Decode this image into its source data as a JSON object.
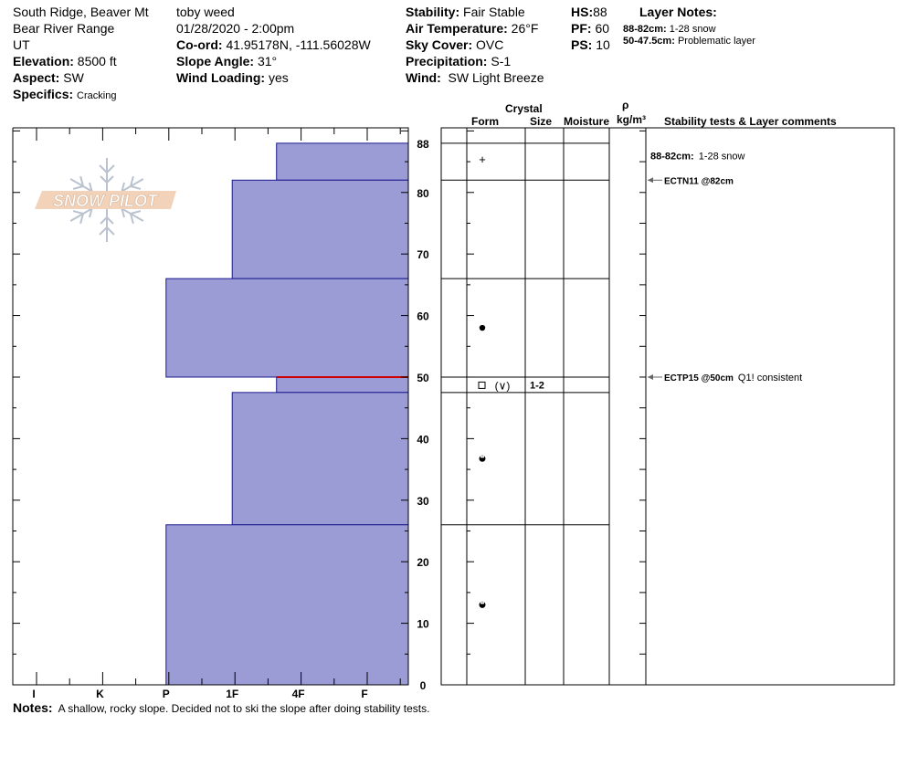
{
  "header": {
    "location": "South Ridge, Beaver Mt",
    "range": "Bear River Range",
    "state": "UT",
    "elevation_label": "Elevation:",
    "elevation": "8500 ft",
    "aspect_label": "Aspect:",
    "aspect": "SW",
    "specifics_label": "Specifics:",
    "specifics": "Cracking",
    "observer": "toby weed",
    "datetime": "01/28/2020 - 2:00pm",
    "coord_label": "Co-ord:",
    "coord": "41.95178N, -111.56028W",
    "slope_label": "Slope Angle:",
    "slope": "31°",
    "wind_loading_label": "Wind Loading:",
    "wind_loading": "yes",
    "stability_label": "Stability:",
    "stability": "Fair Stable",
    "air_temp_label": "Air Temperature:",
    "air_temp": "26°F",
    "sky_label": "Sky Cover:",
    "sky": "OVC",
    "precip_label": "Precipitation:",
    "precip": "S-1",
    "wind_label": "Wind:",
    "wind": "SW Light Breeze",
    "hs_label": "HS:",
    "hs": "88",
    "pf_label": "PF:",
    "pf": "60",
    "ps_label": "PS:",
    "ps": "10",
    "layer_notes_title": "Layer Notes:",
    "layer_notes": [
      {
        "range": "88-82cm:",
        "text": "1-28 snow"
      },
      {
        "range": "50-47.5cm:",
        "text": "Problematic layer"
      }
    ]
  },
  "logo_text": "SNOW PILOT",
  "table_headers": {
    "crystal": "Crystal",
    "form": "Form",
    "size": "Size",
    "moisture": "Moisture",
    "rho": "ρ",
    "density": "kg/m³",
    "comments": "Stability tests & Layer comments"
  },
  "notes_label": "Notes:",
  "notes": "A shallow, rocky slope.  Decided not to ski the slope after doing stability tests.",
  "chart_data": {
    "type": "bar",
    "orientation": "horizontal",
    "ylabel": "",
    "xlabel": "",
    "ylim": [
      0,
      90.5
    ],
    "yticks": [
      0,
      10,
      20,
      30,
      40,
      50,
      60,
      70,
      80,
      88
    ],
    "hardness_ticks": [
      "I",
      "K",
      "P",
      "1F",
      "4F",
      "F"
    ],
    "bar_color": "#9b9bd6",
    "critical_layer_color": "#cc0000",
    "critical_depth": 50,
    "layers": [
      {
        "top": 88,
        "bottom": 82,
        "hardness": "F+",
        "hardness_index": 4.67,
        "form": "plus",
        "size": ""
      },
      {
        "top": 82,
        "bottom": 66,
        "hardness": "4F",
        "hardness_index": 4,
        "form": "",
        "size": ""
      },
      {
        "top": 66,
        "bottom": 50,
        "hardness": "1F",
        "hardness_index": 3,
        "form": "dot",
        "size": ""
      },
      {
        "top": 50,
        "bottom": 47.5,
        "hardness": "F+",
        "hardness_index": 4.67,
        "form": "facet",
        "size": "1-2"
      },
      {
        "top": 47.5,
        "bottom": 26,
        "hardness": "4F",
        "hardness_index": 4,
        "form": "meltfreeze",
        "size": ""
      },
      {
        "top": 26,
        "bottom": 0,
        "hardness": "1F",
        "hardness_index": 3,
        "form": "meltfreeze",
        "size": ""
      }
    ],
    "comments": [
      {
        "depth": 86,
        "bold": "88-82cm:",
        "text": "1-28 snow",
        "arrow": false
      },
      {
        "depth": 82,
        "bold": "ECTN11 @82cm",
        "text": "",
        "arrow": true
      },
      {
        "depth": 50,
        "bold": "ECTP15 @50cm",
        "text": "Q1! consistent",
        "arrow": true
      }
    ]
  }
}
